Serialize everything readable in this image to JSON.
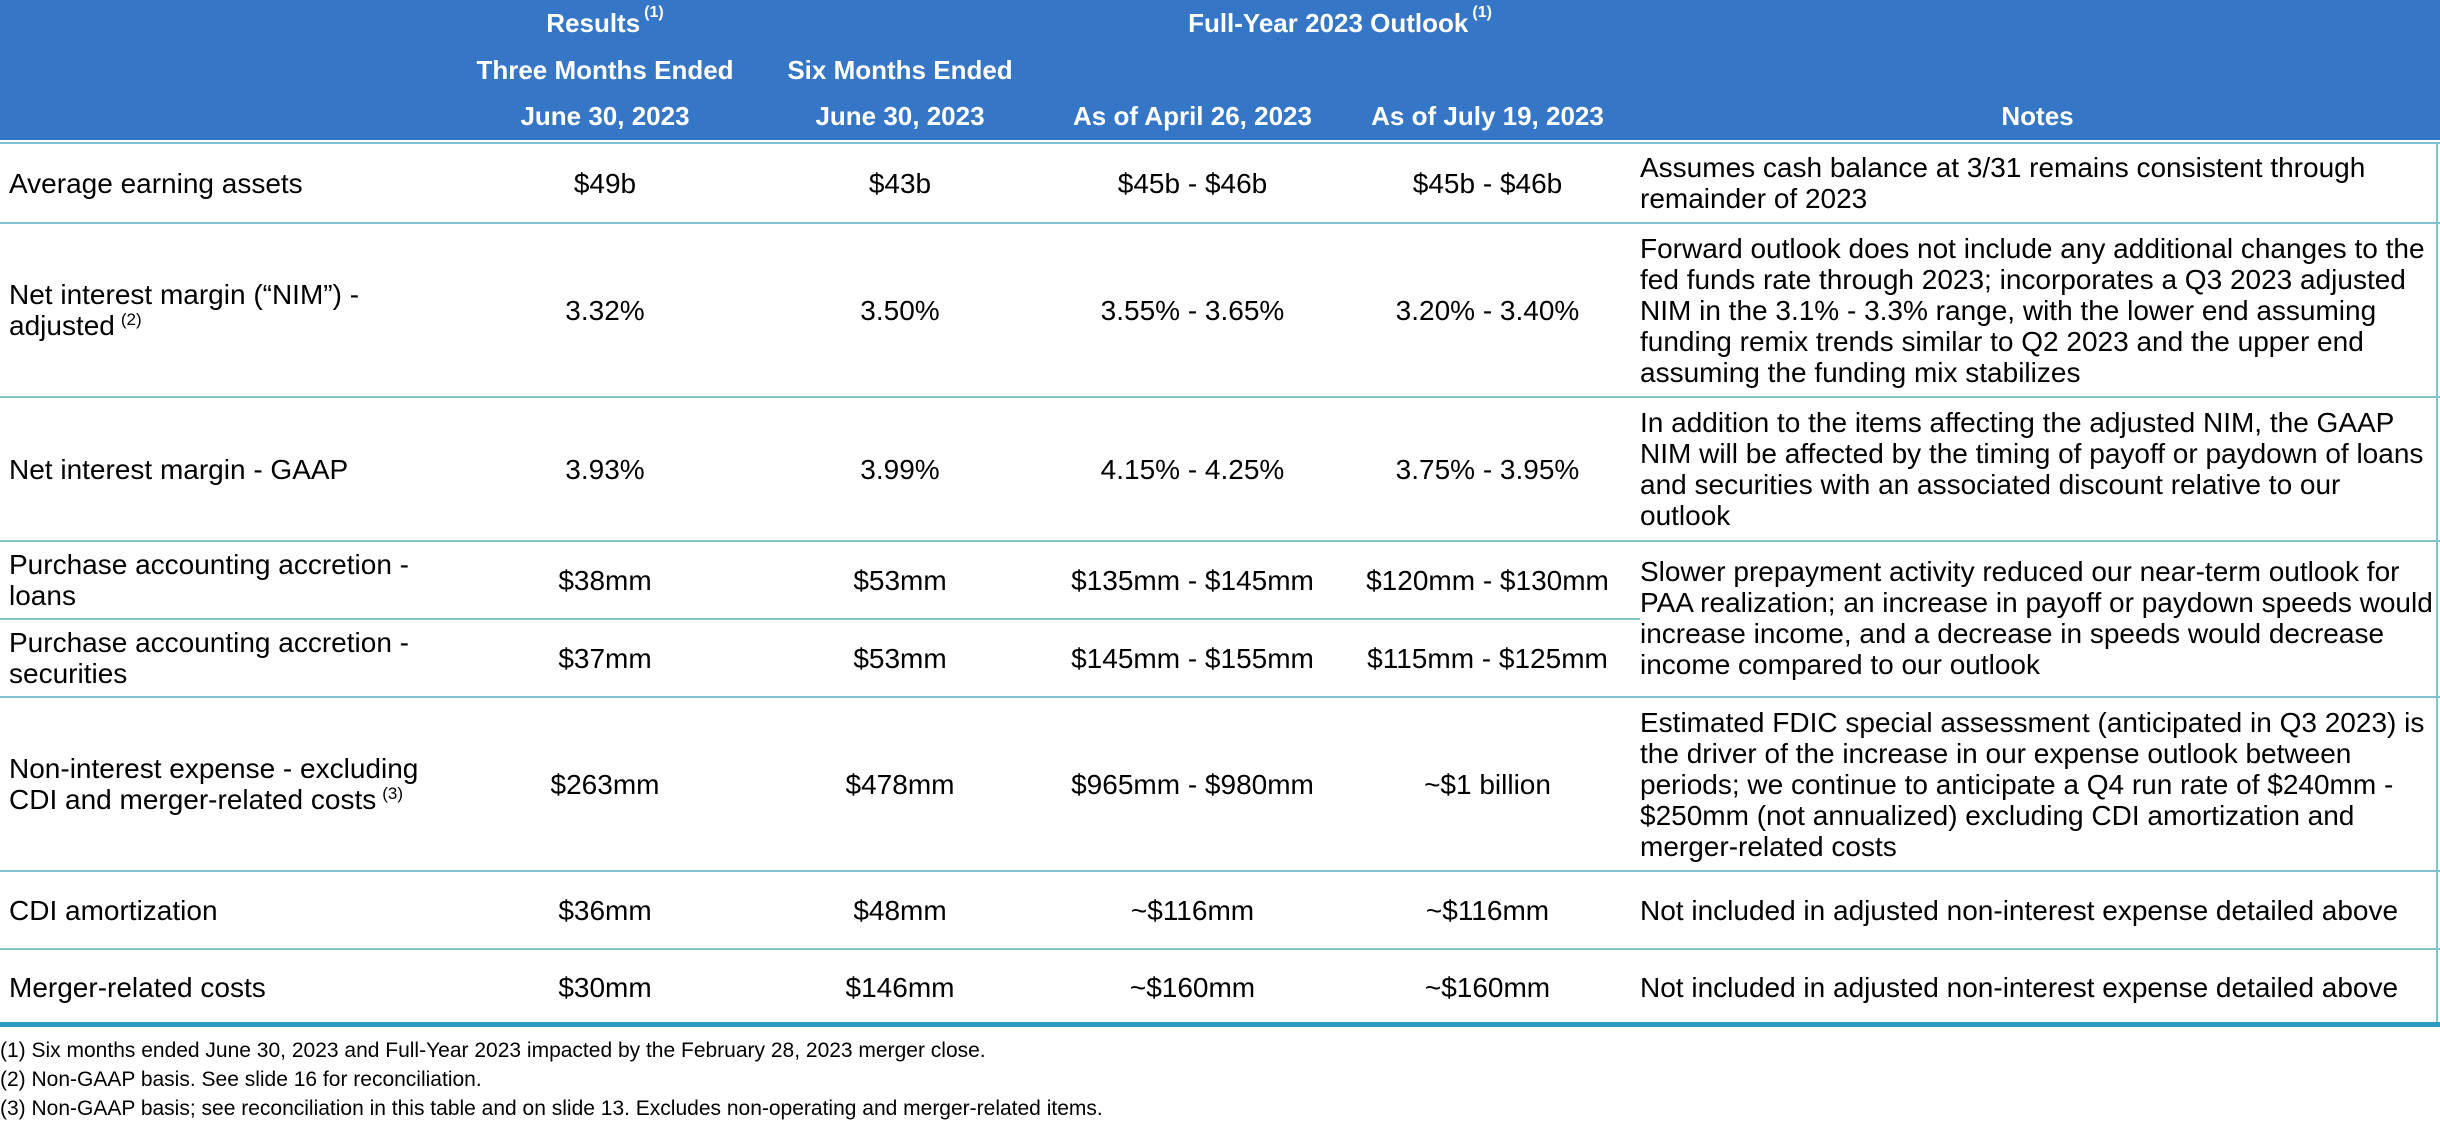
{
  "header": {
    "results": "Results",
    "results_note": "(1)",
    "outlook": "Full-Year 2023 Outlook",
    "outlook_note": "(1)",
    "col1_line1": "Three Months Ended",
    "col1_line2": "June 30, 2023",
    "col2_line1": "Six Months Ended",
    "col2_line2": "June 30, 2023",
    "col3": "As of April 26, 2023",
    "col4": "As of July 19, 2023",
    "col5": "Notes"
  },
  "rows": [
    {
      "label": "Average earning assets",
      "note_ref": "",
      "three_months": "$49b",
      "six_months": "$43b",
      "april": "$45b - $46b",
      "july": "$45b - $46b",
      "notes": "Assumes cash balance at 3/31 remains consistent through remainder of 2023"
    },
    {
      "label": "Net interest margin (“NIM”) - adjusted",
      "note_ref": "(2)",
      "three_months": "3.32%",
      "six_months": "3.50%",
      "april": "3.55% - 3.65%",
      "july": "3.20% - 3.40%",
      "notes": "Forward outlook does not include any additional changes to the fed funds rate through 2023; incorporates a Q3 2023 adjusted NIM in the 3.1% - 3.3% range, with the lower end assuming funding remix trends similar to Q2 2023 and the upper end assuming the funding mix stabilizes"
    },
    {
      "label": "Net interest margin - GAAP",
      "note_ref": "",
      "three_months": "3.93%",
      "six_months": "3.99%",
      "april": "4.15% - 4.25%",
      "july": "3.75% - 3.95%",
      "notes": "In addition to the items affecting the adjusted NIM, the GAAP NIM will be affected by the timing of payoff or paydown of loans and securities with an associated discount relative to our outlook"
    },
    {
      "label": "Purchase accounting accretion - loans",
      "note_ref": "",
      "three_months": "$38mm",
      "six_months": "$53mm",
      "april": "$135mm - $145mm",
      "july": "$120mm - $130mm",
      "notes": ""
    },
    {
      "label": "Purchase accounting accretion - securities",
      "note_ref": "",
      "three_months": "$37mm",
      "six_months": "$53mm",
      "april": "$145mm - $155mm",
      "july": "$115mm - $125mm",
      "notes": ""
    },
    {
      "label": "Non-interest expense - excluding CDI and merger-related costs",
      "note_ref": "(3)",
      "three_months": "$263mm",
      "six_months": "$478mm",
      "april": "$965mm - $980mm",
      "july": "~$1 billion",
      "notes": "Estimated FDIC special assessment (anticipated in Q3 2023) is the driver of the increase in our expense outlook between periods; we continue to anticipate a Q4 run rate of $240mm - $250mm (not annualized) excluding CDI amortization and merger-related costs"
    },
    {
      "label": "CDI amortization",
      "note_ref": "",
      "three_months": "$36mm",
      "six_months": "$48mm",
      "april": "~$116mm",
      "july": "~$116mm",
      "notes": "Not included in adjusted non-interest expense detailed above"
    },
    {
      "label": "Merger-related costs",
      "note_ref": "",
      "three_months": "$30mm",
      "six_months": "$146mm",
      "april": "~$160mm",
      "july": "~$160mm",
      "notes": "Not included in adjusted non-interest expense detailed above"
    }
  ],
  "paa_notes": "Slower prepayment activity reduced our near-term outlook for PAA realization; an increase in payoff or paydown speeds would increase income, and a decrease in speeds would decrease income compared to our outlook",
  "footnotes": [
    "(1) Six months ended June 30, 2023 and Full-Year 2023 impacted by the February 28, 2023 merger close.",
    "(2) Non-GAAP basis. See slide 16 for reconciliation.",
    "(3) Non-GAAP basis; see reconciliation in this table and on slide 13. Excludes non-operating and merger-related items."
  ],
  "colors": {
    "header_bg": "#3576c6",
    "rule": "#7fc3d2",
    "bottom_rule": "#2e9bc3"
  }
}
